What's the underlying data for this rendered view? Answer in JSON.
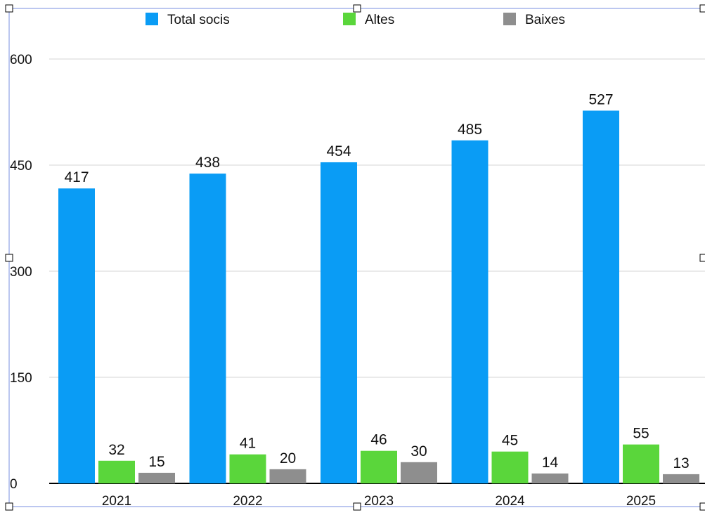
{
  "chart_data": {
    "type": "bar",
    "categories": [
      "2021",
      "2022",
      "2023",
      "2024",
      "2025"
    ],
    "series": [
      {
        "name": "Total socis",
        "color": "#0a9cf5",
        "values": [
          417,
          438,
          454,
          485,
          527
        ]
      },
      {
        "name": "Altes",
        "color": "#5ad63b",
        "values": [
          32,
          41,
          46,
          45,
          55
        ]
      },
      {
        "name": "Baixes",
        "color": "#8e8e8e",
        "values": [
          15,
          20,
          30,
          14,
          13
        ]
      }
    ],
    "yticks": [
      "0",
      "150",
      "300",
      "450",
      "600"
    ],
    "ylim": [
      0,
      600
    ],
    "grid": true,
    "legend_position": "top",
    "selection_handles_visible": true
  }
}
